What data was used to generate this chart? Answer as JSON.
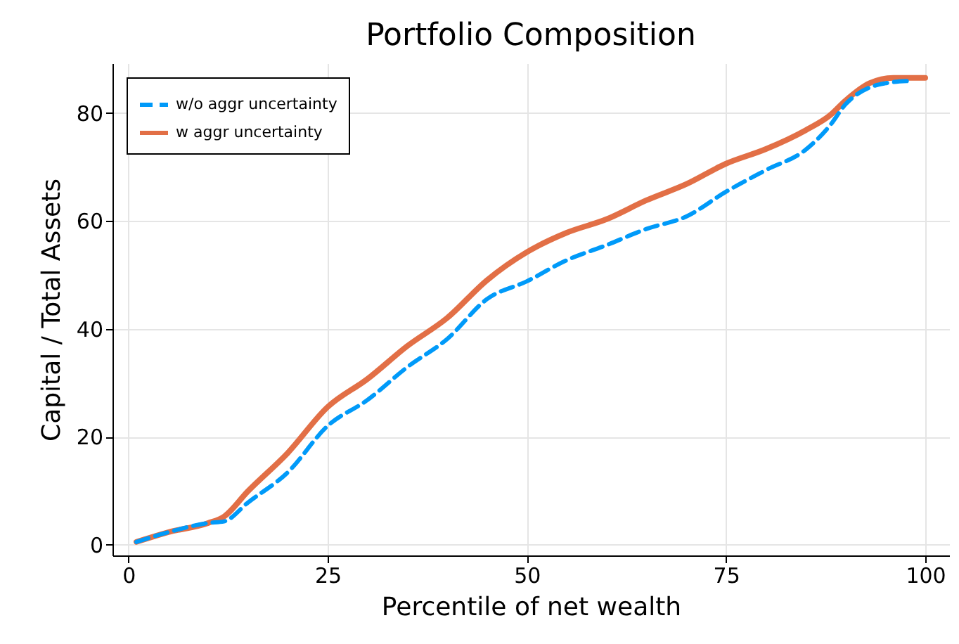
{
  "chart_data": {
    "type": "line",
    "title": "Portfolio Composition",
    "xlabel": "Percentile of net wealth",
    "ylabel": "Capital / Total Assets",
    "x": [
      1,
      5,
      10,
      12,
      15,
      20,
      25,
      30,
      35,
      40,
      45,
      50,
      55,
      60,
      65,
      70,
      75,
      80,
      85,
      88,
      90,
      93,
      95,
      97.7
    ],
    "xlim": [
      -2,
      103
    ],
    "ylim": [
      -2,
      89.2
    ],
    "xticks": [
      0,
      25,
      50,
      75,
      100
    ],
    "yticks": [
      0,
      20,
      40,
      60,
      80
    ],
    "grid": true,
    "legend": "top left",
    "series": [
      {
        "name": "w/o aggr uncertainty",
        "color": "#009af9",
        "line_style": "dashed",
        "values": [
          0.5,
          2.3,
          4,
          4.3,
          7.8,
          13.4,
          22,
          26.8,
          32.9,
          38.1,
          45.5,
          48.8,
          52.7,
          55.5,
          58.5,
          60.8,
          65.4,
          69.4,
          73.2,
          77.6,
          81.6,
          84.7,
          85.5,
          85.9
        ]
      },
      {
        "name": "w aggr uncertainty",
        "color": "#e26f46",
        "line_style": "solid",
        "x": [
          1,
          5,
          10,
          12,
          15,
          20,
          25,
          30,
          35,
          40,
          45,
          50,
          55,
          60,
          65,
          70,
          75,
          80,
          85,
          88,
          90,
          93,
          96,
          100
        ],
        "values": [
          0.5,
          2.3,
          4,
          5.2,
          9.9,
          17,
          25.5,
          30.7,
          36.8,
          42,
          49,
          54.2,
          57.8,
          60.3,
          63.8,
          66.8,
          70.6,
          73.3,
          76.8,
          79.5,
          82.3,
          85.5,
          86.5,
          86.5
        ]
      }
    ]
  }
}
